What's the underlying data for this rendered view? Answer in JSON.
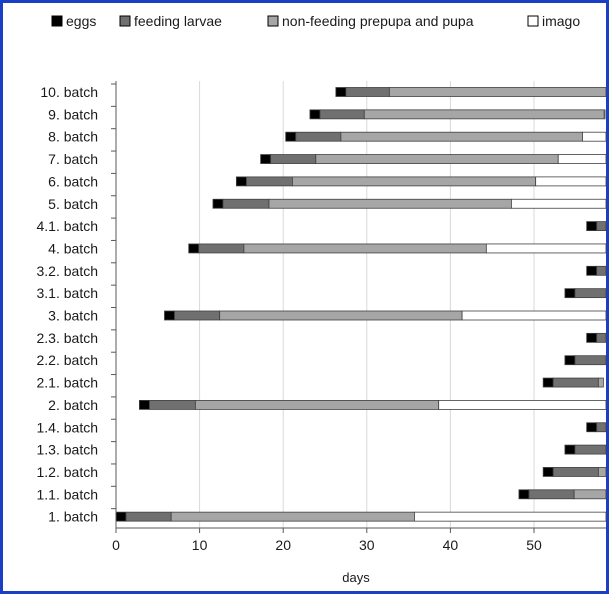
{
  "chart_data": {
    "type": "bar",
    "orientation": "horizontal",
    "stacked": true,
    "title": "",
    "xlabel": "days",
    "ylabel": "",
    "xlim": [
      0,
      59
    ],
    "xticks": [
      0,
      10,
      20,
      30,
      40,
      50
    ],
    "grid": "vertical",
    "legend_position": "top",
    "categories": [
      "10. batch",
      "9. batch",
      "8. batch",
      "7. batch",
      "6. batch",
      "5. batch",
      "4.1. batch",
      "4. batch",
      "3.2. batch",
      "3.1. batch",
      "3. batch",
      "2.3. batch",
      "2.2. batch",
      "2.1. batch",
      "2. batch",
      "1.4. batch",
      "1.3. batch",
      "1.2. batch",
      "1.1. batch",
      "1. batch"
    ],
    "starts": [
      26.3,
      23.2,
      20.3,
      17.3,
      14.4,
      11.6,
      56.3,
      8.7,
      56.3,
      53.7,
      5.8,
      56.3,
      53.7,
      51.1,
      2.8,
      56.3,
      53.7,
      51.1,
      48.2,
      0
    ],
    "series": [
      {
        "name": "eggs",
        "color": "#000000",
        "values": [
          1.2,
          1.2,
          1.2,
          1.2,
          1.2,
          1.2,
          1.2,
          1.2,
          1.2,
          1.2,
          1.2,
          1.2,
          1.2,
          1.2,
          1.2,
          1.2,
          1.2,
          1.2,
          1.2,
          1.2
        ]
      },
      {
        "name": "feeding larvae",
        "color": "#707070",
        "values": [
          5.2,
          5.3,
          5.4,
          5.4,
          5.5,
          5.5,
          1.5,
          5.4,
          1.5,
          4.1,
          5.4,
          1.5,
          4.1,
          5.4,
          5.5,
          1.5,
          4.1,
          5.4,
          5.4,
          5.4
        ]
      },
      {
        "name": "non-feeding prepupa and pupa",
        "color": "#a6a6a6",
        "values": [
          26.3,
          28.7,
          28.9,
          29.0,
          29.1,
          29.0,
          0,
          29.0,
          0,
          0,
          29.0,
          0,
          0,
          0.6,
          29.1,
          0,
          0,
          2.3,
          4.2,
          29.1
        ]
      },
      {
        "name": "imago",
        "color": "#ffffff",
        "values": [
          0,
          0.1,
          3.2,
          6.1,
          8.8,
          11.7,
          0,
          14.7,
          0,
          0,
          17.6,
          0,
          0,
          0,
          20.4,
          0,
          0,
          0,
          0,
          23.3
        ]
      }
    ]
  }
}
